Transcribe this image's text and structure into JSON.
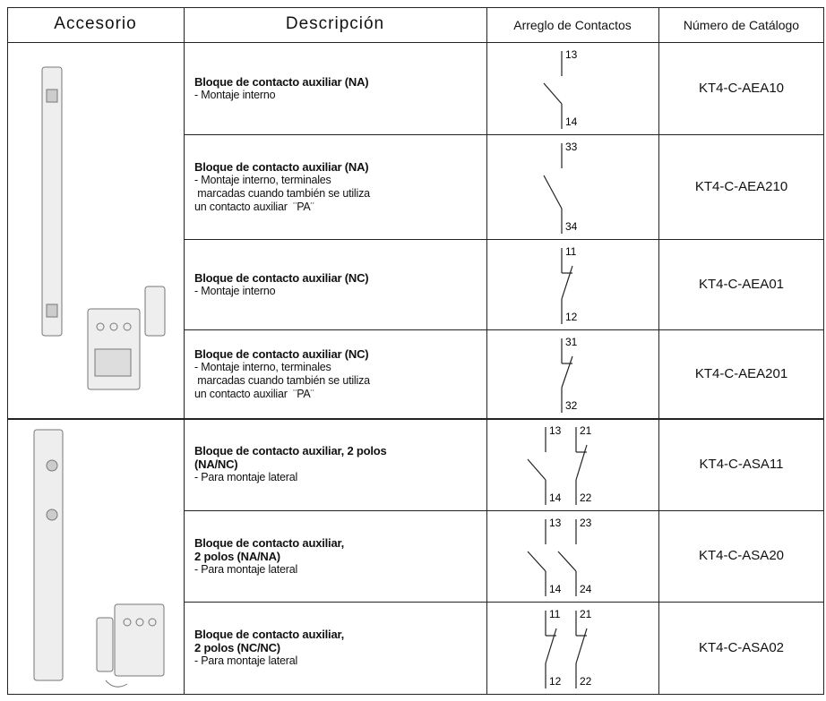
{
  "table": {
    "headers": [
      "Accesorio",
      "Descripción",
      "Arreglo de Contactos",
      "Número de Catálogo"
    ],
    "groups": [
      {
        "rows": [
          {
            "title": [
              "Bloque de contacto auxiliar (NA)"
            ],
            "details": [
              "- Montaje interno"
            ],
            "contacts": [
              {
                "top": "13",
                "bottom": "14",
                "kind": "open"
              }
            ],
            "catalog": "KT4-C-AEA10"
          },
          {
            "title": [
              "Bloque de contacto auxiliar (NA)"
            ],
            "details": [
              "- Montaje interno, terminales",
              " marcadas cuando también se utiliza",
              "un contacto auxiliar  ¨PA¨"
            ],
            "contacts": [
              {
                "top": "33",
                "bottom": "34",
                "kind": "open"
              }
            ],
            "catalog": "KT4-C-AEA210"
          },
          {
            "title": [
              "Bloque de contacto auxiliar (NC)"
            ],
            "details": [
              "- Montaje interno"
            ],
            "contacts": [
              {
                "top": "11",
                "bottom": "12",
                "kind": "closed"
              }
            ],
            "catalog": "KT4-C-AEA01"
          },
          {
            "title": [
              "Bloque de contacto auxiliar (NC)"
            ],
            "details": [
              "- Montaje interno, terminales",
              " marcadas cuando también se utiliza",
              "un contacto auxiliar  ¨PA¨"
            ],
            "contacts": [
              {
                "top": "31",
                "bottom": "32",
                "kind": "closed"
              }
            ],
            "catalog": "KT4-C-AEA201"
          }
        ]
      },
      {
        "rows": [
          {
            "title": [
              "Bloque de contacto auxiliar, 2 polos",
              "(NA/NC)"
            ],
            "details": [
              "- Para montaje lateral"
            ],
            "contacts": [
              {
                "top": "13",
                "bottom": "14",
                "kind": "open"
              },
              {
                "top": "21",
                "bottom": "22",
                "kind": "closed"
              }
            ],
            "catalog": "KT4-C-ASA11"
          },
          {
            "title": [
              "Bloque de contacto auxiliar,",
              "2 polos (NA/NA)"
            ],
            "details": [
              "- Para montaje lateral"
            ],
            "contacts": [
              {
                "top": "13",
                "bottom": "14",
                "kind": "open"
              },
              {
                "top": "23",
                "bottom": "24",
                "kind": "open"
              }
            ],
            "catalog": "KT4-C-ASA20"
          },
          {
            "title": [
              "Bloque de contacto auxiliar,",
              "2 polos (NC/NC)"
            ],
            "details": [
              "- Para montaje lateral"
            ],
            "contacts": [
              {
                "top": "11",
                "bottom": "12",
                "kind": "closed"
              },
              {
                "top": "21",
                "bottom": "22",
                "kind": "closed"
              }
            ],
            "catalog": "KT4-C-ASA02"
          }
        ]
      }
    ]
  }
}
